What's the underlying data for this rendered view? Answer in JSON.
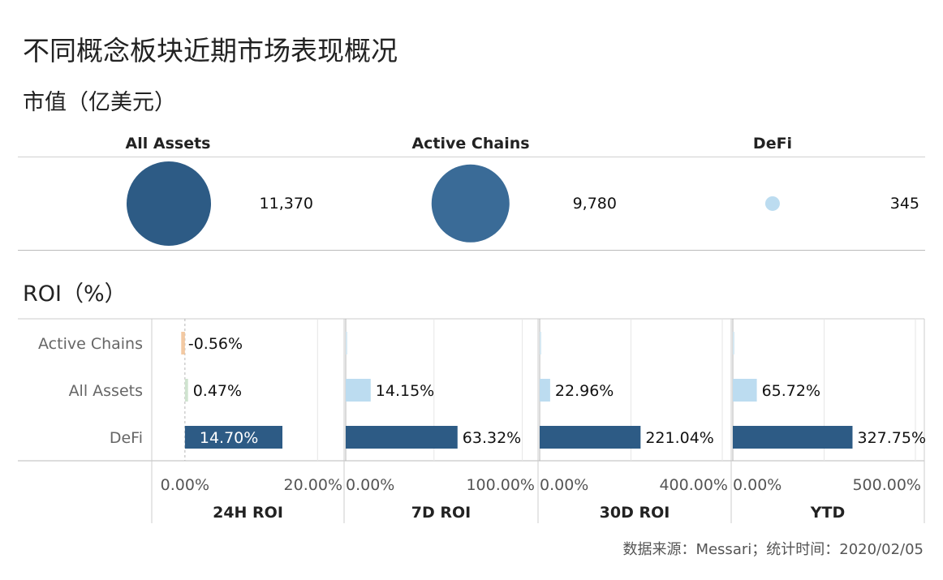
{
  "title": "不同概念板块近期市场表现概况",
  "market_cap": {
    "subtitle": "市值（亿美元）",
    "items": [
      {
        "label": "All Assets",
        "value": "11,370",
        "color": "#2d5b85"
      },
      {
        "label": "Active Chains",
        "value": "9,780",
        "color": "#3a6b97"
      },
      {
        "label": "DeFi",
        "value": "345",
        "color": "#bcdcf0"
      }
    ]
  },
  "roi": {
    "subtitle": "ROI（%）"
  },
  "footer": "数据来源：Messari；统计时间：2020/02/05",
  "chart_data": [
    {
      "type": "bubble",
      "title": "市值（亿美元）",
      "categories": [
        "All Assets",
        "Active Chains",
        "DeFi"
      ],
      "values": [
        11370,
        9780,
        345
      ]
    },
    {
      "type": "bar",
      "title": "ROI（%）",
      "categories": [
        "Active Chains",
        "All Assets",
        "DeFi"
      ],
      "panels": [
        {
          "name": "24H ROI",
          "values": [
            -0.56,
            0.47,
            14.7
          ],
          "labels": [
            "-0.56%",
            "0.47%",
            "14.70%"
          ],
          "xlim": [
            -5,
            24
          ],
          "ticks": [
            0,
            20
          ],
          "tick_labels": [
            "0.00%",
            "20.00%"
          ],
          "zero_line": "dashed"
        },
        {
          "name": "7D ROI",
          "values": [
            0.7,
            14.15,
            63.32
          ],
          "labels": [
            "",
            "14.15%",
            "63.32%"
          ],
          "xlim": [
            0,
            108
          ],
          "ticks": [
            0,
            50,
            100
          ],
          "tick_labels": [
            "0.00%",
            "",
            "100.00%"
          ],
          "zero_line": "solid"
        },
        {
          "name": "30D ROI",
          "values": [
            1.4,
            22.96,
            221.04
          ],
          "labels": [
            "",
            "22.96%",
            "221.04%"
          ],
          "xlim": [
            0,
            416
          ],
          "ticks": [
            0,
            200,
            400
          ],
          "tick_labels": [
            "0.00%",
            "",
            "400.00%"
          ],
          "zero_line": "solid"
        },
        {
          "name": "YTD",
          "values": [
            2.5,
            65.72,
            327.75
          ],
          "labels": [
            "",
            "65.72%",
            "327.75%"
          ],
          "xlim": [
            0,
            520
          ],
          "ticks": [
            0,
            250,
            500
          ],
          "tick_labels": [
            "0.00%",
            "",
            "500.00%"
          ],
          "zero_line": "solid"
        }
      ],
      "colors": {
        "Active Chains": "#f3c9a2",
        "All Assets": "#bcdcf0",
        "DeFi": "#2d5b85",
        "Active Chains_positive": "#d6e8f2",
        "All Assets_small": "#cfe3cf"
      },
      "grid": true
    }
  ]
}
